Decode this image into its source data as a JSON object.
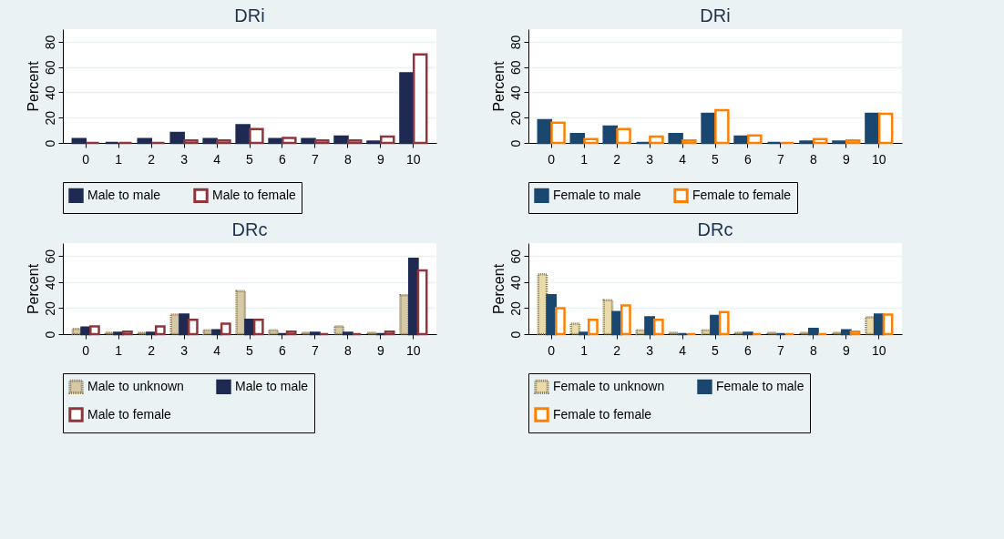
{
  "chart_data": [
    {
      "type": "bar",
      "title": "DRi",
      "ylabel": "Percent",
      "categories": [
        "0",
        "1",
        "2",
        "3",
        "4",
        "5",
        "6",
        "7",
        "8",
        "9",
        "10"
      ],
      "ylim": [
        0,
        90
      ],
      "yticks": [
        0,
        20,
        40,
        60,
        80
      ],
      "grid": "y",
      "legend": "bottom",
      "series": [
        {
          "name": "Male to male",
          "color": "#1f2a52",
          "values": [
            3,
            0,
            3,
            8,
            3,
            14,
            3,
            3,
            5,
            1,
            55
          ]
        },
        {
          "name": "Male to female",
          "color": "#90353b",
          "values": [
            0,
            0,
            0,
            2,
            2,
            11,
            4,
            2,
            2,
            5,
            70
          ]
        }
      ]
    },
    {
      "type": "bar",
      "title": "DRi",
      "ylabel": "Percent",
      "categories": [
        "0",
        "1",
        "2",
        "3",
        "4",
        "5",
        "6",
        "7",
        "8",
        "9",
        "10"
      ],
      "ylim": [
        0,
        90
      ],
      "yticks": [
        0,
        20,
        40,
        60,
        80
      ],
      "grid": "y",
      "legend": "bottom",
      "series": [
        {
          "name": "Female to male",
          "color": "#1a476f",
          "values": [
            18,
            7,
            13,
            0,
            7,
            23,
            5,
            0,
            1,
            1,
            23
          ]
        },
        {
          "name": "Female to female",
          "color": "#ff8000",
          "values": [
            16,
            3,
            11,
            5,
            2,
            26,
            6,
            0,
            3,
            2,
            23
          ]
        }
      ]
    },
    {
      "type": "bar",
      "title": "DRc",
      "ylabel": "Percent",
      "categories": [
        "0",
        "1",
        "2",
        "3",
        "4",
        "5",
        "6",
        "7",
        "8",
        "9",
        "10"
      ],
      "ylim": [
        0,
        70
      ],
      "yticks": [
        0,
        20,
        40,
        60
      ],
      "grid": "y",
      "legend": "bottom",
      "series": [
        {
          "name": "Male to unknown",
          "color": "#d6c9a6",
          "values": [
            4,
            1,
            1,
            15,
            3,
            33,
            3,
            1,
            6,
            1,
            30
          ]
        },
        {
          "name": "Male to male",
          "color": "#1f2a52",
          "values": [
            5,
            1,
            1,
            15,
            3,
            11,
            0,
            1,
            1,
            0,
            58
          ]
        },
        {
          "name": "Male to female",
          "color": "#90353b",
          "values": [
            6,
            2,
            6,
            11,
            8,
            11,
            2,
            0,
            0,
            2,
            49
          ]
        }
      ]
    },
    {
      "type": "bar",
      "title": "DRc",
      "ylabel": "Percent",
      "categories": [
        "0",
        "1",
        "2",
        "3",
        "4",
        "5",
        "6",
        "7",
        "8",
        "9",
        "10"
      ],
      "ylim": [
        0,
        70
      ],
      "yticks": [
        0,
        20,
        40,
        60
      ],
      "grid": "y",
      "legend": "bottom",
      "series": [
        {
          "name": "Female to unknown",
          "color": "#e9dcaa",
          "values": [
            46,
            8,
            26,
            3,
            1,
            3,
            1,
            1,
            1,
            1,
            13
          ]
        },
        {
          "name": "Female to male",
          "color": "#1a476f",
          "values": [
            30,
            1,
            17,
            13,
            0,
            14,
            1,
            0,
            4,
            3,
            15
          ]
        },
        {
          "name": "Female to female",
          "color": "#ff8000",
          "values": [
            20,
            11,
            22,
            11,
            0,
            17,
            0,
            0,
            0,
            2,
            15
          ]
        }
      ]
    }
  ]
}
